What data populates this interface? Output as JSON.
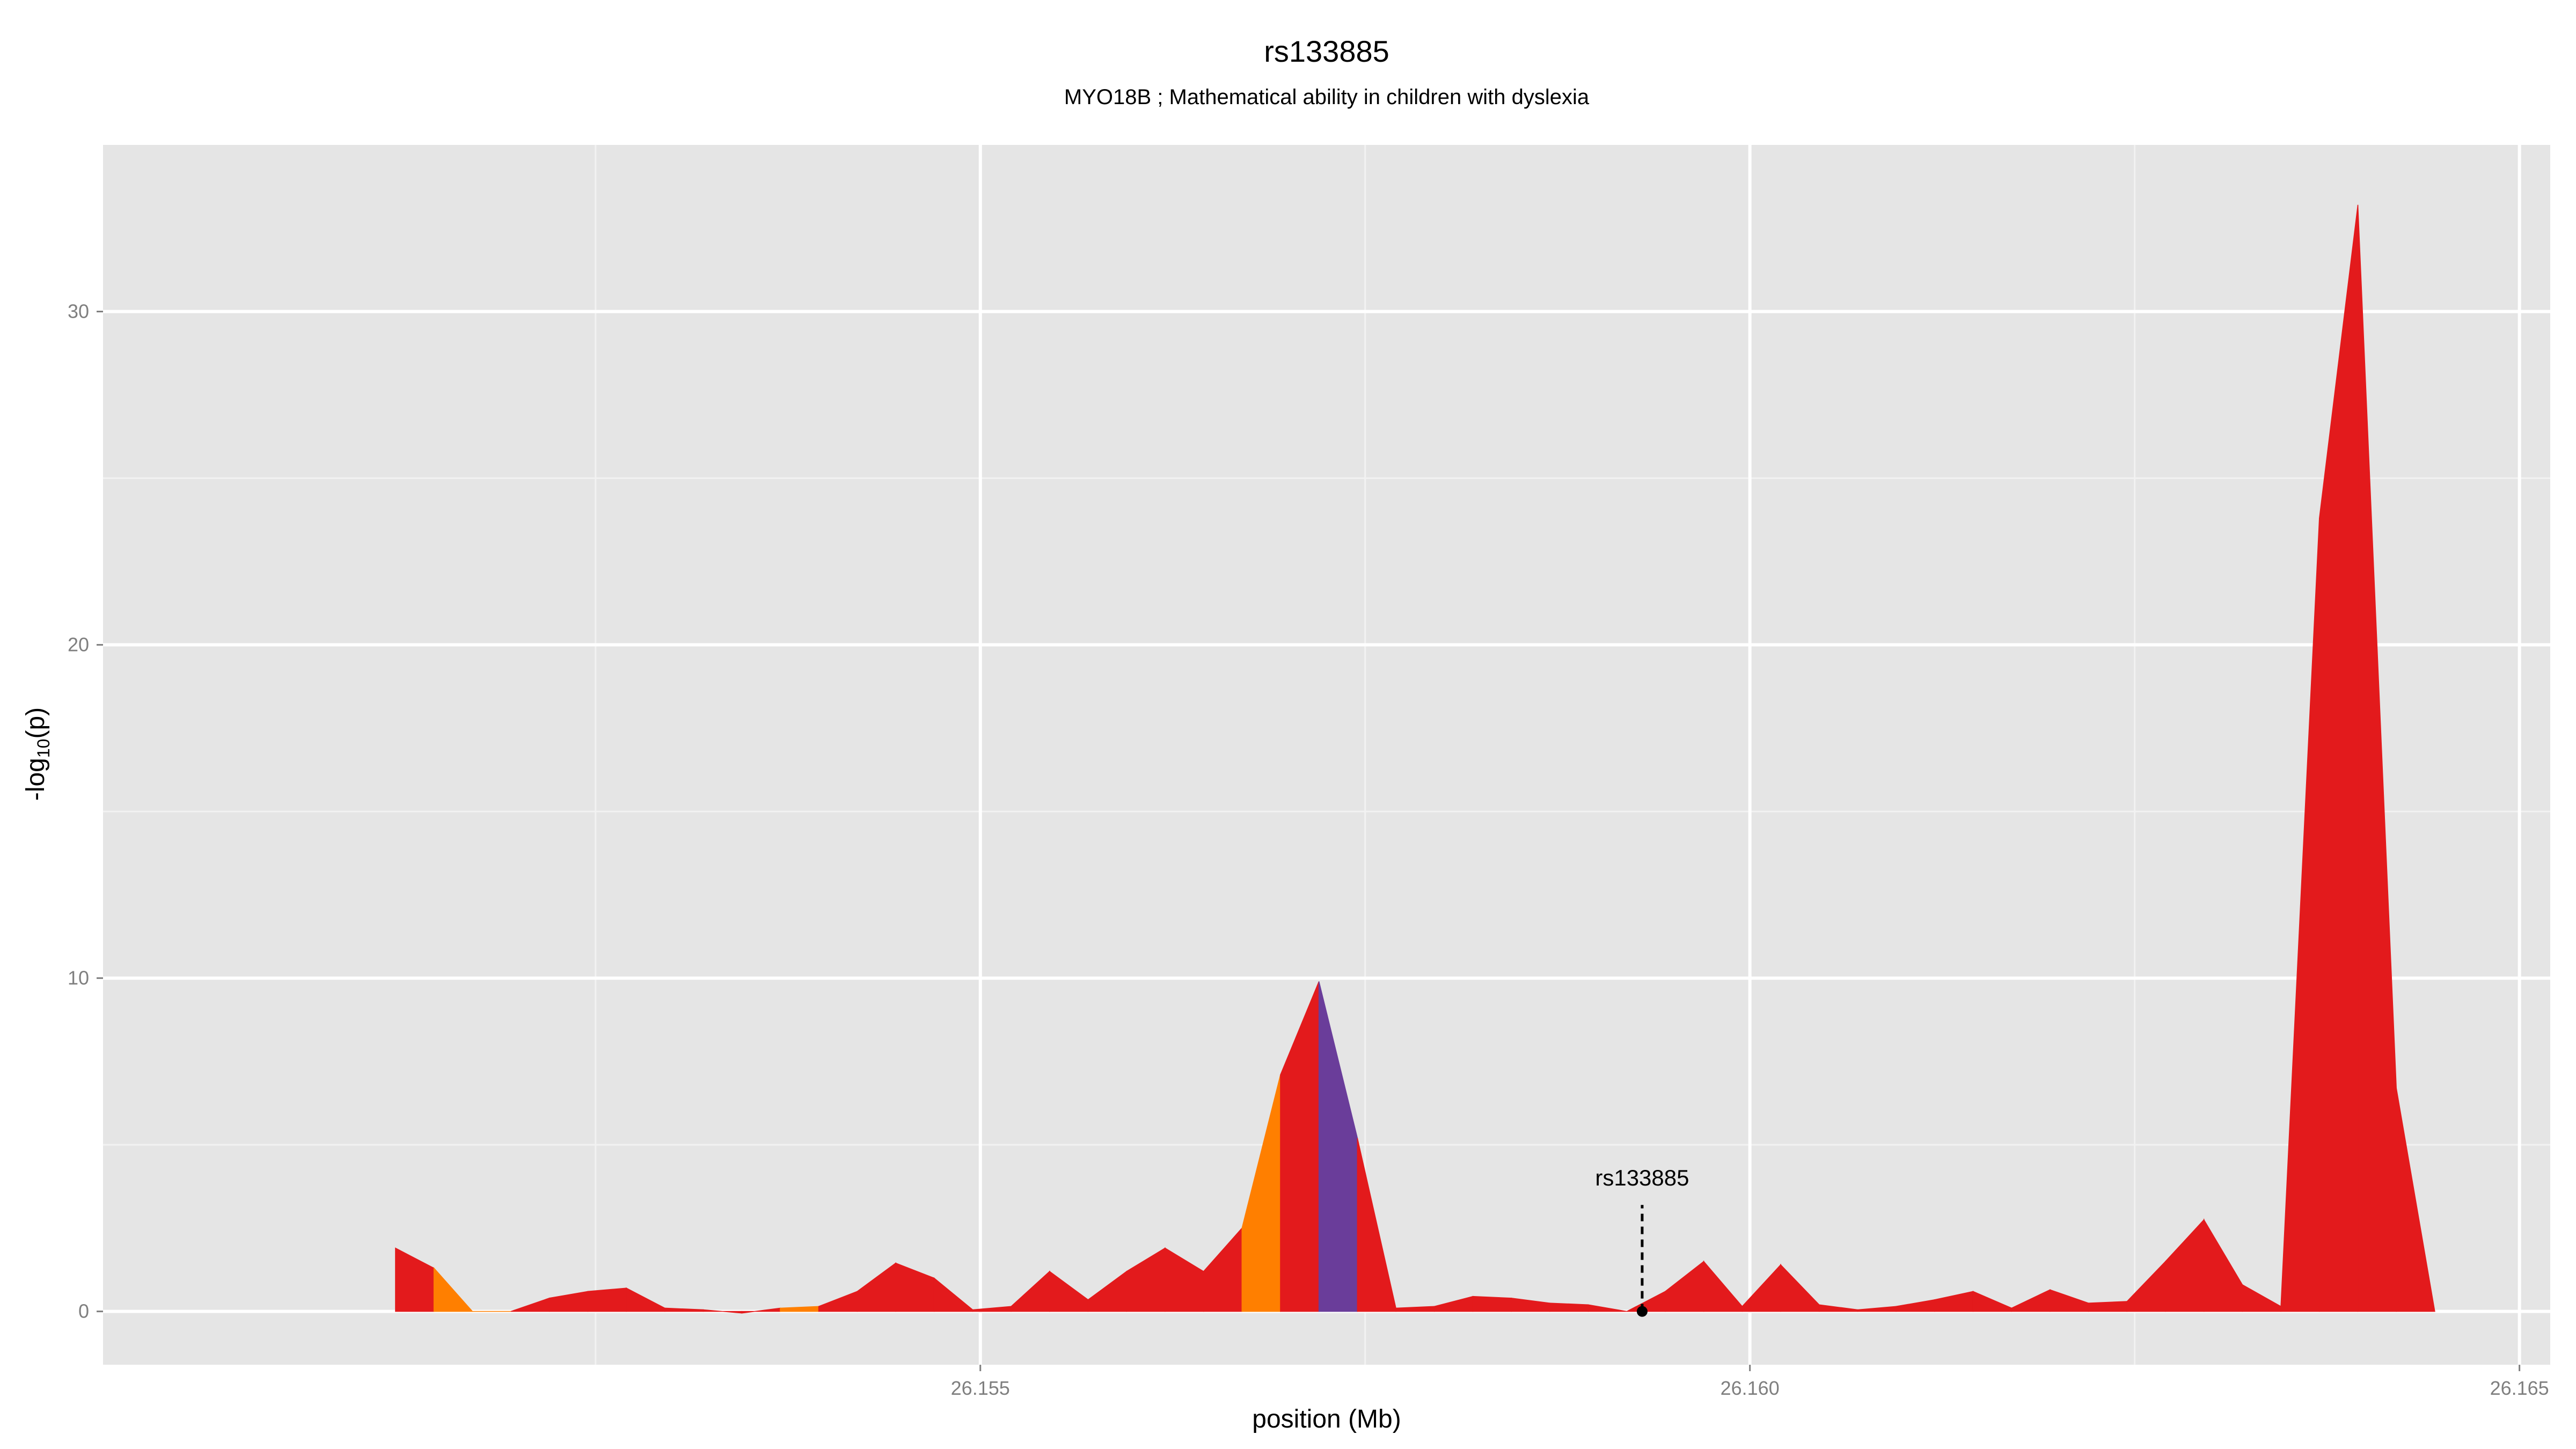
{
  "chart_data": {
    "type": "area",
    "title": "rs133885",
    "subtitle": "MYO18B ; Mathematical ability in children with dyslexia",
    "xlabel": "position (Mb)",
    "ylabel_main": "-log",
    "ylabel_sub": "10",
    "ylabel_tail": "(p)",
    "xlim": [
      26.1493,
      26.1652
    ],
    "ylim": [
      -1.6,
      35
    ],
    "x_ticks": [
      {
        "value": 26.155,
        "label": "26.155"
      },
      {
        "value": 26.16,
        "label": "26.160"
      },
      {
        "value": 26.165,
        "label": "26.165"
      }
    ],
    "x_minor": [
      26.1525,
      26.1575,
      26.1625
    ],
    "y_ticks": [
      {
        "value": 0,
        "label": "0"
      },
      {
        "value": 10,
        "label": "10"
      },
      {
        "value": 20,
        "label": "20"
      },
      {
        "value": 30,
        "label": "30"
      }
    ],
    "y_minor": [
      5,
      15,
      25
    ],
    "grid": true,
    "colors": {
      "panel_bg": "#e5e5e5",
      "grid_major": "#ffffff",
      "grid_minor": "#f2f2f2",
      "red": "#e31a1c",
      "orange": "#ff7f00",
      "purple": "#6a3d9a"
    },
    "points": [
      {
        "x": 26.1512,
        "y": 1.9,
        "color": "red"
      },
      {
        "x": 26.15145,
        "y": 1.3,
        "color": "orange"
      },
      {
        "x": 26.1517,
        "y": 0.0,
        "color": "orange"
      },
      {
        "x": 26.15195,
        "y": 0.0,
        "color": "red"
      },
      {
        "x": 26.1522,
        "y": 0.4,
        "color": "red"
      },
      {
        "x": 26.15245,
        "y": 0.6,
        "color": "red"
      },
      {
        "x": 26.1527,
        "y": 0.7,
        "color": "red"
      },
      {
        "x": 26.15295,
        "y": 0.1,
        "color": "red"
      },
      {
        "x": 26.1532,
        "y": 0.05,
        "color": "red"
      },
      {
        "x": 26.15345,
        "y": -0.05,
        "color": "red"
      },
      {
        "x": 26.1537,
        "y": 0.1,
        "color": "orange"
      },
      {
        "x": 26.15395,
        "y": 0.15,
        "color": "red"
      },
      {
        "x": 26.1542,
        "y": 0.6,
        "color": "red"
      },
      {
        "x": 26.15445,
        "y": 1.45,
        "color": "red"
      },
      {
        "x": 26.1547,
        "y": 1.0,
        "color": "red"
      },
      {
        "x": 26.15495,
        "y": 0.05,
        "color": "red"
      },
      {
        "x": 26.1552,
        "y": 0.15,
        "color": "red"
      },
      {
        "x": 26.15445,
        "y": 1.45,
        "color": "skip"
      },
      {
        "x": 26.15545,
        "y": 1.2,
        "color": "red"
      },
      {
        "x": 26.1557,
        "y": 0.35,
        "color": "red"
      },
      {
        "x": 26.15995,
        "y": 1.2,
        "color": "skip"
      },
      {
        "x": 26.15995,
        "y": 1.2,
        "color": "skip"
      }
    ],
    "series": [
      {
        "name": "",
        "x": [
          26.1512,
          26.15145,
          26.1517,
          26.15195,
          26.1522,
          26.15245,
          26.1527,
          26.15295,
          26.1532,
          26.15345,
          26.1537,
          26.15395,
          26.1542,
          26.15445,
          26.1547,
          26.15495,
          26.1552,
          26.15545,
          26.1557,
          26.15595,
          26.1562,
          26.15645,
          26.1567,
          26.15695,
          26.1572,
          26.15745,
          26.1577,
          26.15795,
          26.1582,
          26.15845,
          26.1587,
          26.15895,
          26.1592,
          26.15945,
          26.1597,
          26.15995,
          26.1602,
          26.16045,
          26.1607,
          26.16095,
          26.1612,
          26.16145,
          26.1617,
          26.16195,
          26.1622,
          26.16245,
          26.1627,
          26.16295,
          26.1632,
          26.16345,
          26.1637,
          26.16395,
          26.1642,
          26.16445
        ],
        "y": [
          1.9,
          1.3,
          0.0,
          0.0,
          0.4,
          0.6,
          0.7,
          0.1,
          0.05,
          -0.05,
          0.1,
          0.15,
          0.6,
          1.45,
          1.0,
          0.05,
          0.15,
          1.2,
          0.35,
          1.2,
          1.9,
          1.2,
          2.5,
          7.1,
          9.9,
          5.2,
          0.1,
          0.15,
          0.45,
          0.4,
          0.25,
          0.2,
          0.0,
          0.6,
          1.5,
          0.15,
          1.4,
          0.2,
          0.05,
          0.15,
          0.35,
          0.6,
          0.1,
          0.65,
          0.25,
          0.3,
          1.5,
          2.75,
          0.8,
          0.15,
          23.8,
          33.2,
          6.7,
          0.0
        ],
        "colors": [
          "red",
          "orange",
          "orange",
          "red",
          "red",
          "red",
          "red",
          "red",
          "red",
          "red",
          "orange",
          "red",
          "red",
          "red",
          "red",
          "red",
          "red",
          "red",
          "red",
          "red",
          "red",
          "red",
          "orange",
          "red",
          "purple",
          "red",
          "red",
          "red",
          "red",
          "red",
          "red",
          "red",
          "red",
          "red",
          "red",
          "red",
          "red",
          "red",
          "red",
          "red",
          "red",
          "red",
          "red",
          "red",
          "red",
          "red",
          "red",
          "red",
          "red",
          "red",
          "red",
          "red",
          "red",
          "red"
        ]
      }
    ],
    "annotation": {
      "label": "rs133885",
      "x": 26.1593,
      "y": 0.0,
      "text_y": 4.0
    }
  }
}
